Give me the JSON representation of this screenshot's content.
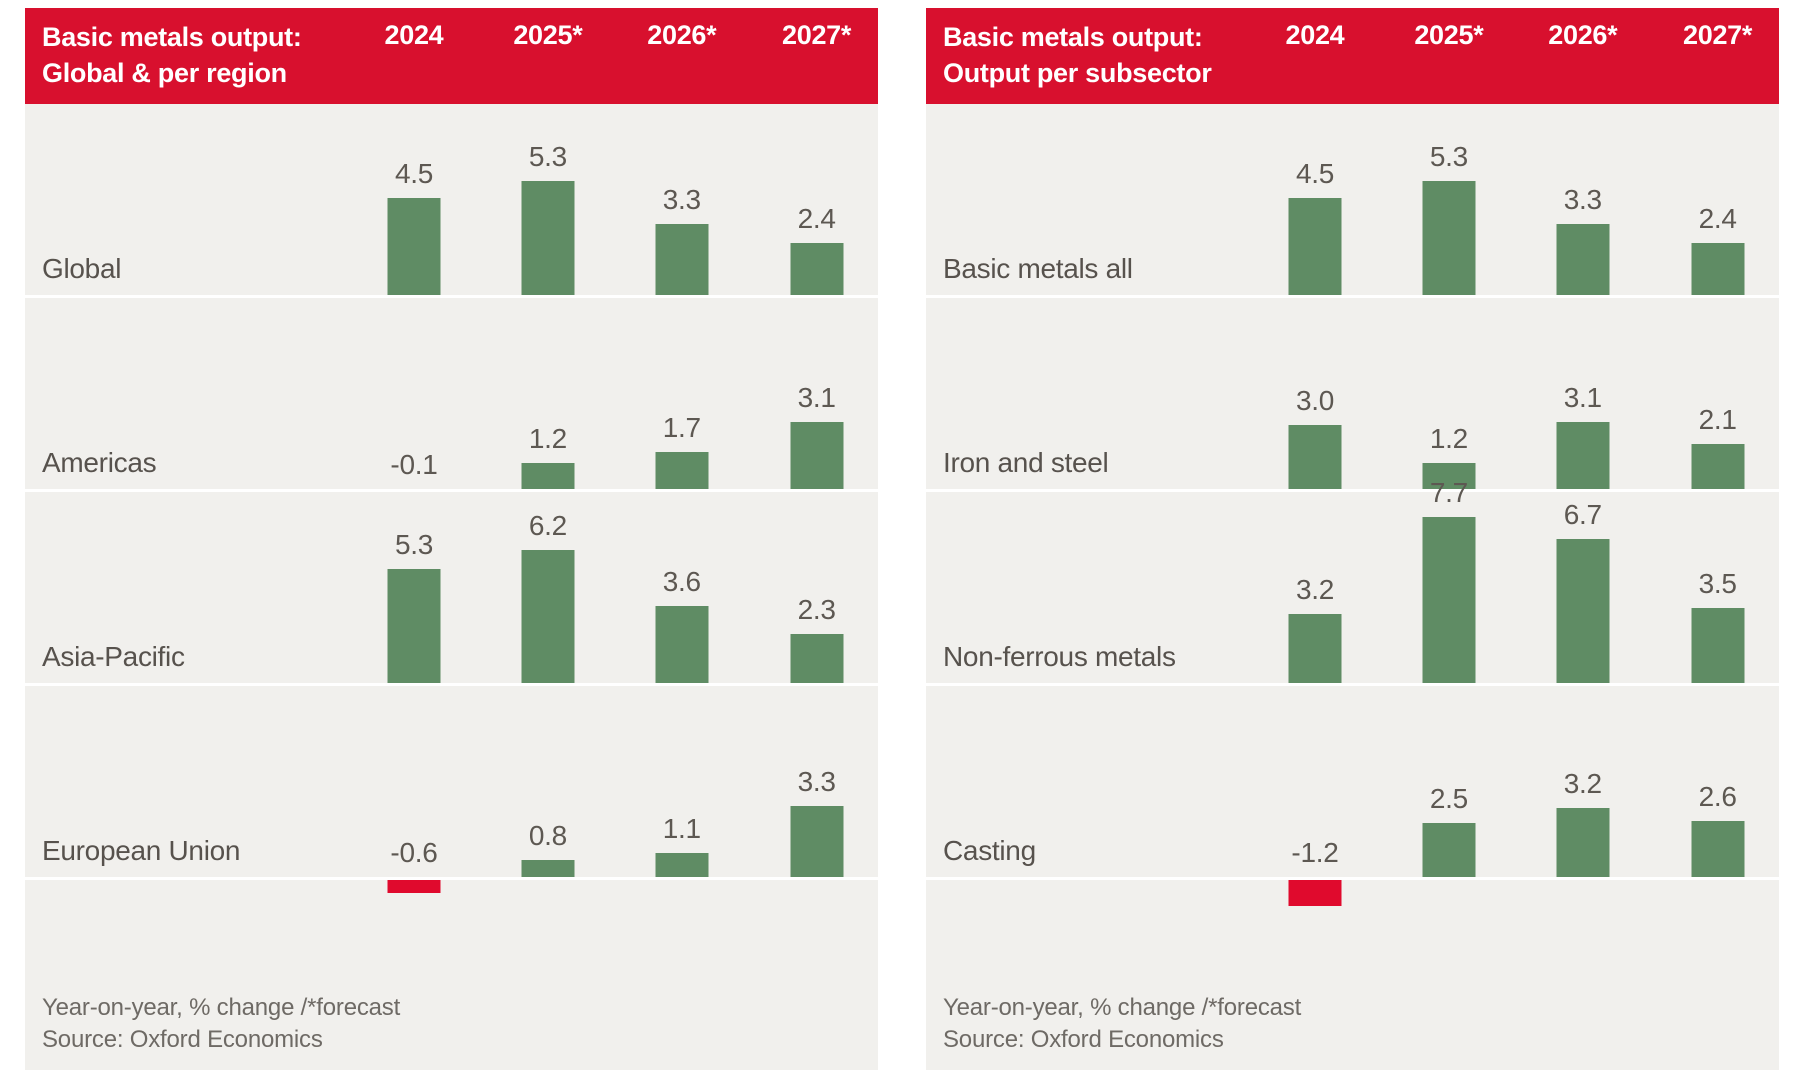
{
  "colors": {
    "header_bg": "#d8102e",
    "header_text": "#ffffff",
    "panel_bg": "#f1f0ed",
    "bar_positive": "#5f8c64",
    "bar_negative": "#e00a2d",
    "label": "#57524d",
    "value": "#5d5852",
    "footer": "#6e6a65"
  },
  "chart_data": [
    {
      "type": "bar",
      "title": "Basic metals output:",
      "subtitle": "Global & per region",
      "columns": [
        "2024",
        "2025*",
        "2026*",
        "2027*"
      ],
      "categories": [
        "Global",
        "Americas",
        "Asia-Pacific",
        "European Union"
      ],
      "rows": [
        {
          "label": "Global",
          "values": [
            4.5,
            5.3,
            3.3,
            2.4
          ]
        },
        {
          "label": "Americas",
          "values": [
            -0.1,
            1.2,
            1.7,
            3.1
          ]
        },
        {
          "label": "Asia-Pacific",
          "values": [
            5.3,
            6.2,
            3.6,
            2.3
          ]
        },
        {
          "label": "European Union",
          "values": [
            -0.6,
            0.8,
            1.1,
            3.3
          ]
        }
      ],
      "footnote": "Year-on-year, % change /*forecast",
      "source": "Source: Oxford Economics",
      "layout": {
        "value_labels": true,
        "gridlines": false,
        "negative_bars_colored_red": true
      }
    },
    {
      "type": "bar",
      "title": "Basic metals output:",
      "subtitle": "Output per subsector",
      "columns": [
        "2024",
        "2025*",
        "2026*",
        "2027*"
      ],
      "categories": [
        "Basic metals all",
        "Iron and steel",
        "Non-ferrous metals",
        "Casting"
      ],
      "rows": [
        {
          "label": "Basic metals all",
          "values": [
            4.5,
            5.3,
            3.3,
            2.4
          ]
        },
        {
          "label": "Iron and steel",
          "values": [
            3.0,
            1.2,
            3.1,
            2.1
          ]
        },
        {
          "label": "Non-ferrous metals",
          "values": [
            3.2,
            7.7,
            6.7,
            3.5
          ]
        },
        {
          "label": "Casting",
          "values": [
            -1.2,
            2.5,
            3.2,
            2.6
          ]
        }
      ],
      "footnote": "Year-on-year, % change /*forecast",
      "source": "Source: Oxford Economics",
      "layout": {
        "value_labels": true,
        "gridlines": false,
        "negative_bars_colored_red": true
      }
    }
  ]
}
